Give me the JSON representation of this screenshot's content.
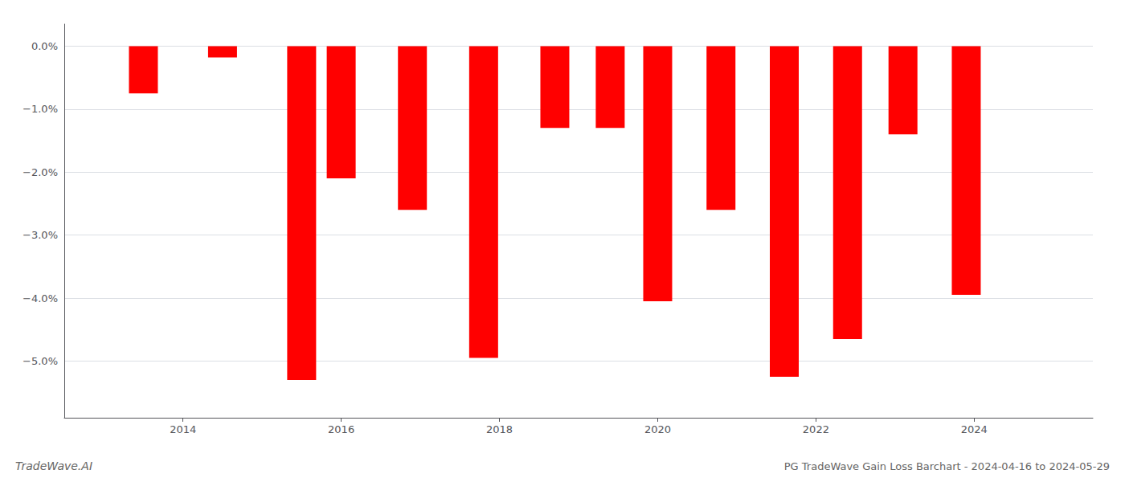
{
  "chart_data": {
    "type": "bar",
    "title": "PG TradeWave Gain Loss Barchart - 2024-04-16 to 2024-05-29",
    "annotations": [
      "TradeWave.AI"
    ],
    "x": [
      2013.5,
      2014.5,
      2015.5,
      2016.0,
      2016.9,
      2017.8,
      2018.7,
      2019.4,
      2020.0,
      2020.8,
      2021.6,
      2022.4,
      2023.1,
      2023.9
    ],
    "values": [
      -0.75,
      -0.18,
      -5.3,
      -2.1,
      -2.6,
      -4.95,
      -1.3,
      -1.3,
      -4.05,
      -2.6,
      -5.25,
      -4.65,
      -1.4,
      -3.95
    ],
    "color": "#ff0000",
    "xlim": [
      2012.5,
      2025.5
    ],
    "xticks": [
      2014,
      2016,
      2018,
      2020,
      2022,
      2024
    ],
    "ylim": [
      -5.9,
      0.35
    ],
    "yticks": [
      {
        "value": 0.0,
        "label": "0.0%"
      },
      {
        "value": -1.0,
        "label": "−1.0%"
      },
      {
        "value": -2.0,
        "label": "−2.0%"
      },
      {
        "value": -3.0,
        "label": "−3.0%"
      },
      {
        "value": -4.0,
        "label": "−4.0%"
      },
      {
        "value": -5.0,
        "label": "−5.0%"
      }
    ],
    "grid": true
  }
}
